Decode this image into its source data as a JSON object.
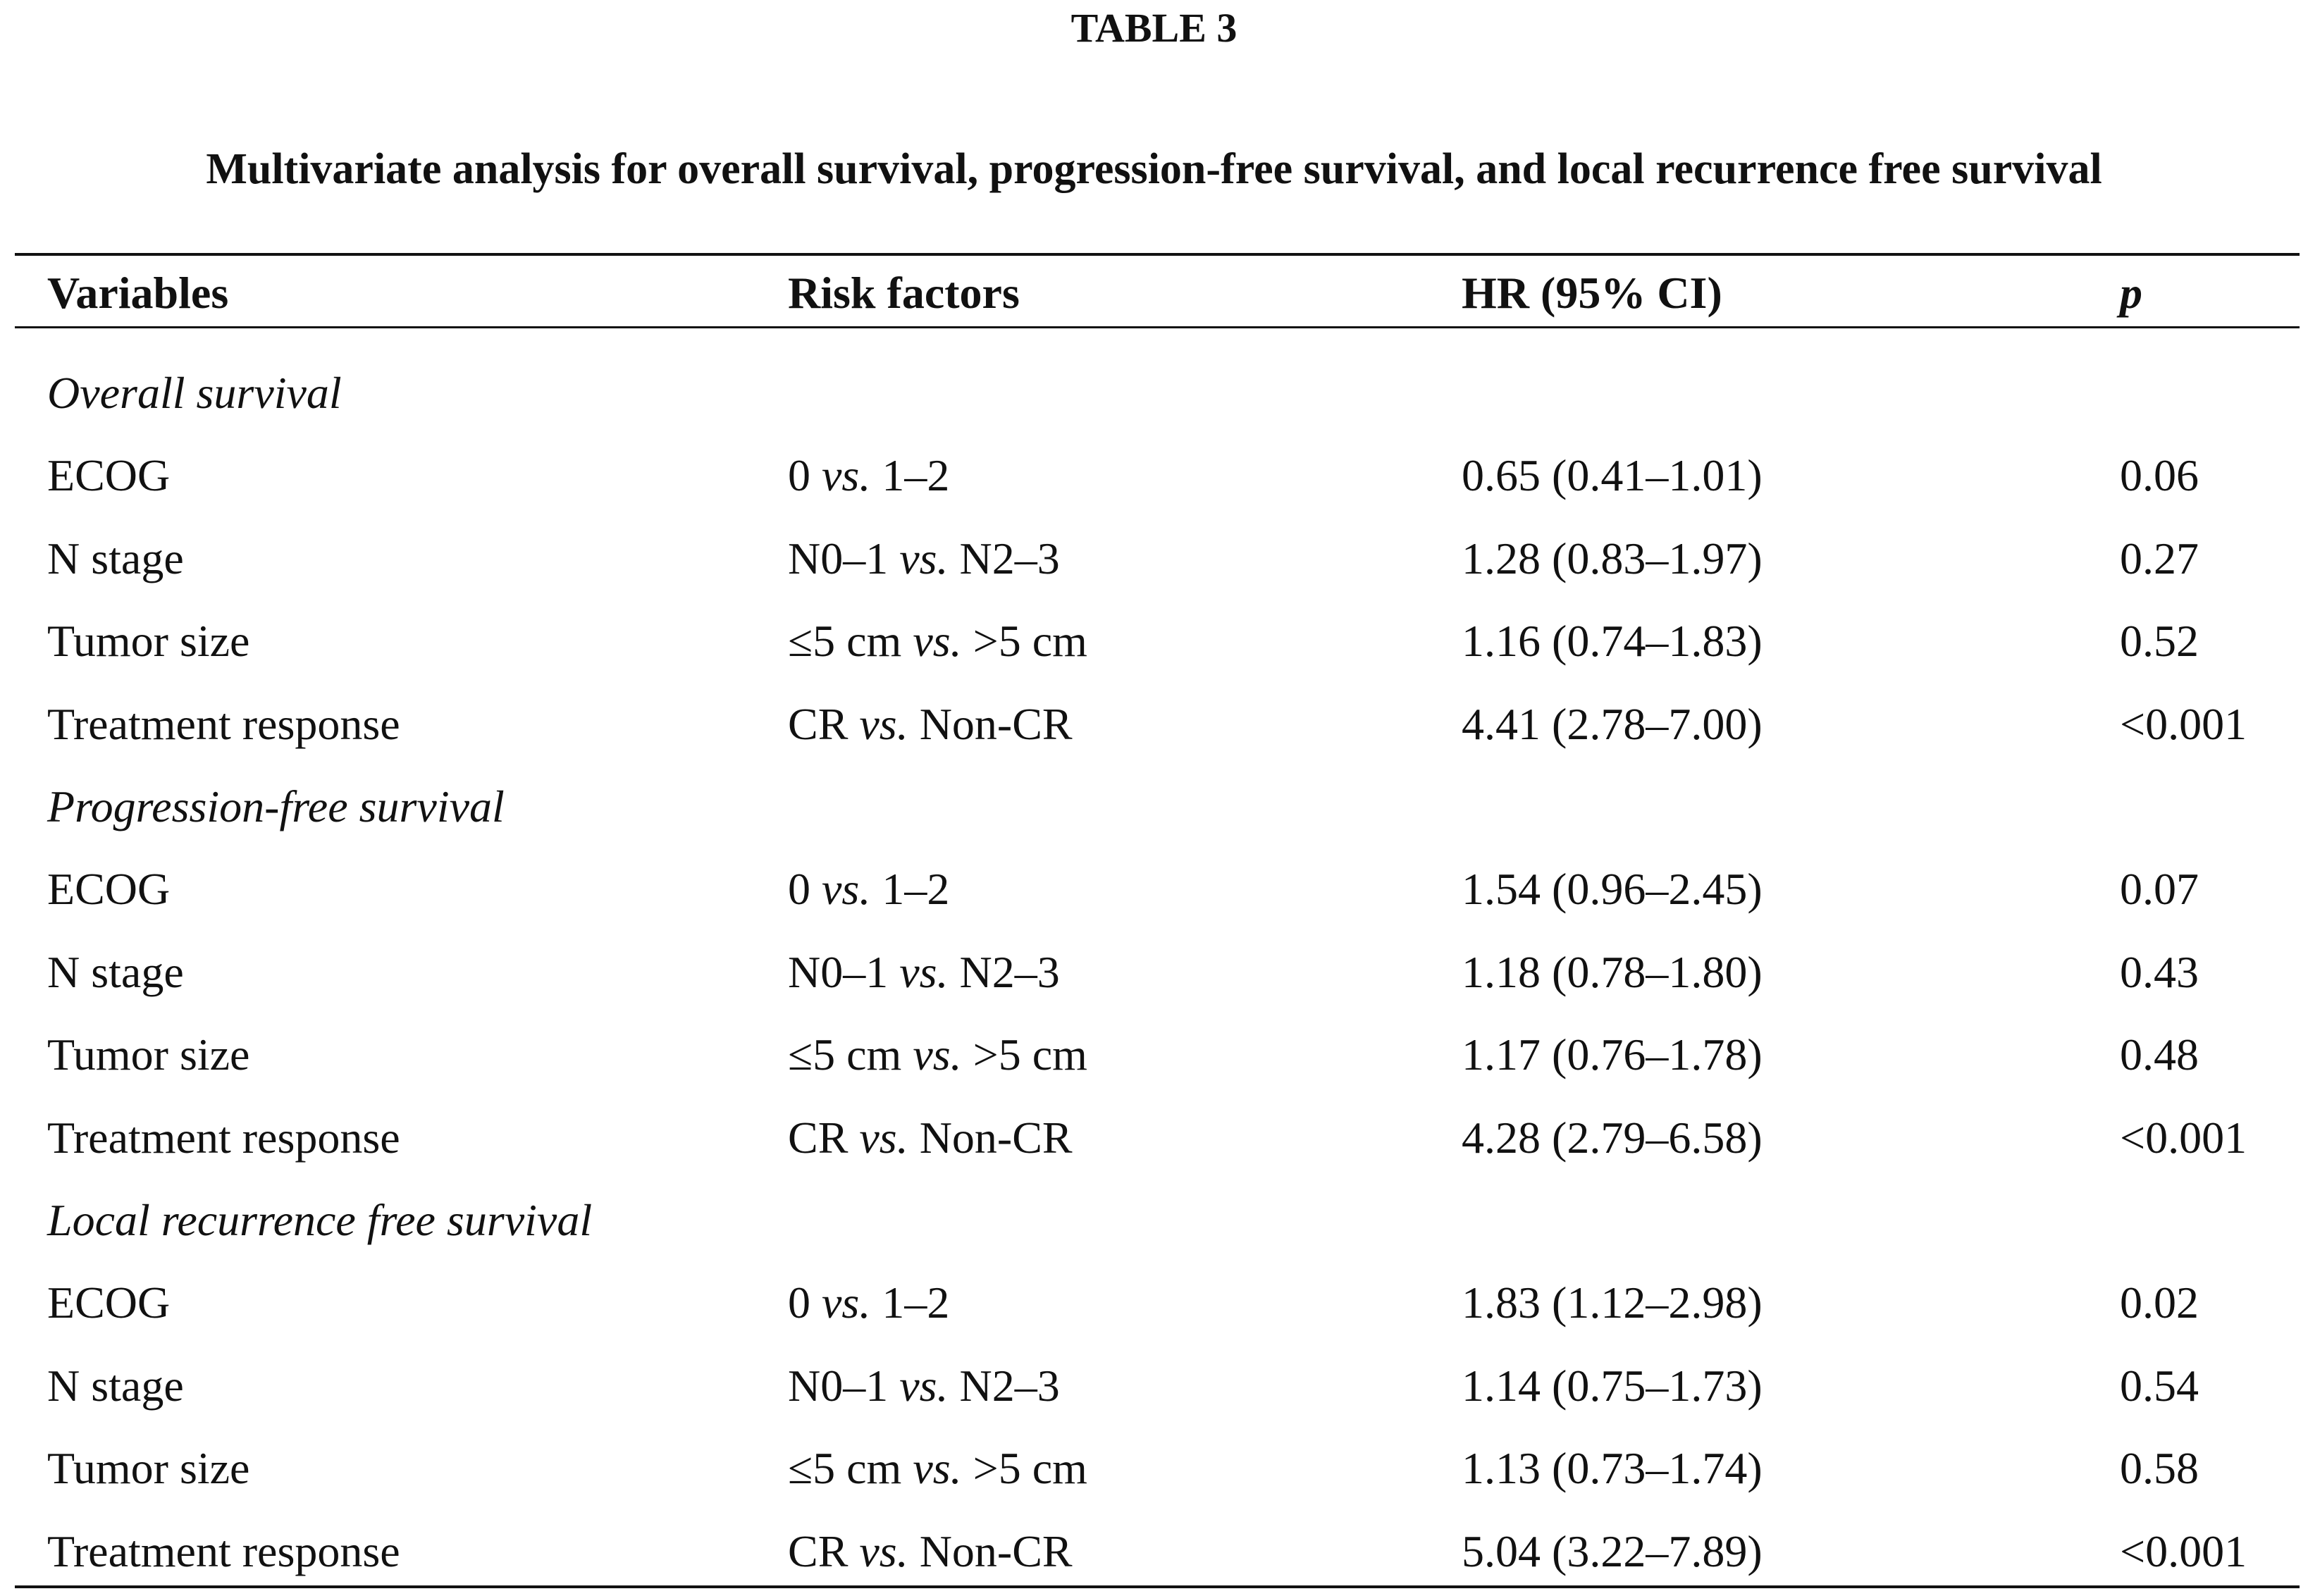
{
  "title": "TABLE 3",
  "caption": "Multivariate analysis for overall survival, progression-free survival, and local recurrence free survival",
  "table": {
    "header": [
      "Variables",
      "Risk factors",
      "HR (95% CI)",
      "p"
    ],
    "sections": [
      {
        "label": "Overall survival",
        "rows": [
          {
            "variable": "ECOG",
            "risk": [
              "0",
              "vs.",
              "1–2"
            ],
            "hr": "0.65 (0.41–1.01)",
            "p": "0.06"
          },
          {
            "variable": "N stage",
            "risk": [
              "N0–1",
              "vs.",
              "N2–3"
            ],
            "hr": "1.28 (0.83–1.97)",
            "p": "0.27"
          },
          {
            "variable": "Tumor size",
            "risk": [
              "≤5 cm",
              "vs.",
              ">5 cm"
            ],
            "hr": "1.16 (0.74–1.83)",
            "p": "0.52"
          },
          {
            "variable": "Treatment response",
            "risk": [
              "CR",
              "vs.",
              "Non-CR"
            ],
            "hr": "4.41 (2.78–7.00)",
            "p": "<0.001"
          }
        ]
      },
      {
        "label": "Progression-free survival",
        "rows": [
          {
            "variable": "ECOG",
            "risk": [
              "0",
              "vs.",
              "1–2"
            ],
            "hr": "1.54 (0.96–2.45)",
            "p": "0.07"
          },
          {
            "variable": "N stage",
            "risk": [
              "N0–1",
              "vs.",
              "N2–3"
            ],
            "hr": "1.18 (0.78–1.80)",
            "p": "0.43"
          },
          {
            "variable": "Tumor size",
            "risk": [
              "≤5 cm",
              "vs.",
              ">5 cm"
            ],
            "hr": "1.17 (0.76–1.78)",
            "p": "0.48"
          },
          {
            "variable": "Treatment response",
            "risk": [
              "CR",
              "vs.",
              "Non-CR"
            ],
            "hr": "4.28 (2.79–6.58)",
            "p": "<0.001"
          }
        ]
      },
      {
        "label": "Local recurrence free survival",
        "rows": [
          {
            "variable": "ECOG",
            "risk": [
              "0",
              "vs.",
              "1–2"
            ],
            "hr": "1.83 (1.12–2.98)",
            "p": "0.02"
          },
          {
            "variable": "N stage",
            "risk": [
              "N0–1",
              "vs.",
              "N2–3"
            ],
            "hr": "1.14 (0.75–1.73)",
            "p": "0.54"
          },
          {
            "variable": "Tumor size",
            "risk": [
              "≤5 cm",
              "vs.",
              ">5 cm"
            ],
            "hr": "1.13 (0.73–1.74)",
            "p": "0.58"
          },
          {
            "variable": "Treatment response",
            "risk": [
              "CR",
              "vs.",
              "Non-CR"
            ],
            "hr": "5.04 (3.22–7.89)",
            "p": "<0.001"
          }
        ]
      }
    ]
  }
}
